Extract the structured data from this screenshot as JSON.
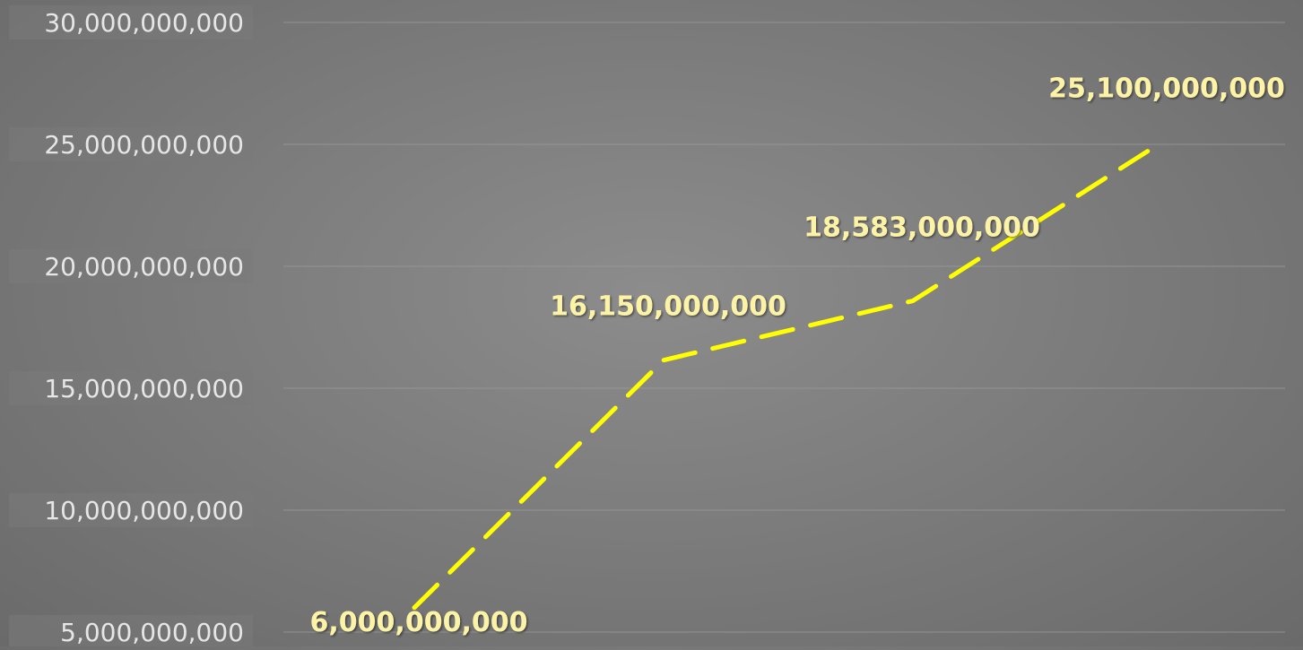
{
  "chart_data": {
    "type": "line",
    "title": "",
    "xlabel": "",
    "ylabel": "",
    "x": [
      1,
      2,
      3,
      4
    ],
    "series": [
      {
        "values": [
          6000000000,
          16150000000,
          18583000000,
          25100000000
        ],
        "data_labels": [
          "6,000,000,000",
          "16,150,000,000",
          "18,583,000,000",
          "25,100,000,000"
        ],
        "color": "#ffff00",
        "line_style": "dashed"
      }
    ],
    "ylim": [
      5000000000,
      30000000000
    ],
    "y_ticks": [
      {
        "value": 5000000000,
        "label": "5,000,000,000"
      },
      {
        "value": 10000000000,
        "label": "10,000,000,000"
      },
      {
        "value": 15000000000,
        "label": "15,000,000,000"
      },
      {
        "value": 20000000000,
        "label": "20,000,000,000"
      },
      {
        "value": 25000000000,
        "label": "25,000,000,000"
      },
      {
        "value": 30000000000,
        "label": "30,000,000,000"
      }
    ],
    "grid": true,
    "legend": "none"
  },
  "colors": {
    "background": "#808080",
    "gridline": "#9a9a9a",
    "tick_label_text": "#e6e6e6",
    "tick_label_box": "#7a7a7a",
    "data_label_text": "#fcf3a6",
    "line": "#ffff00"
  }
}
